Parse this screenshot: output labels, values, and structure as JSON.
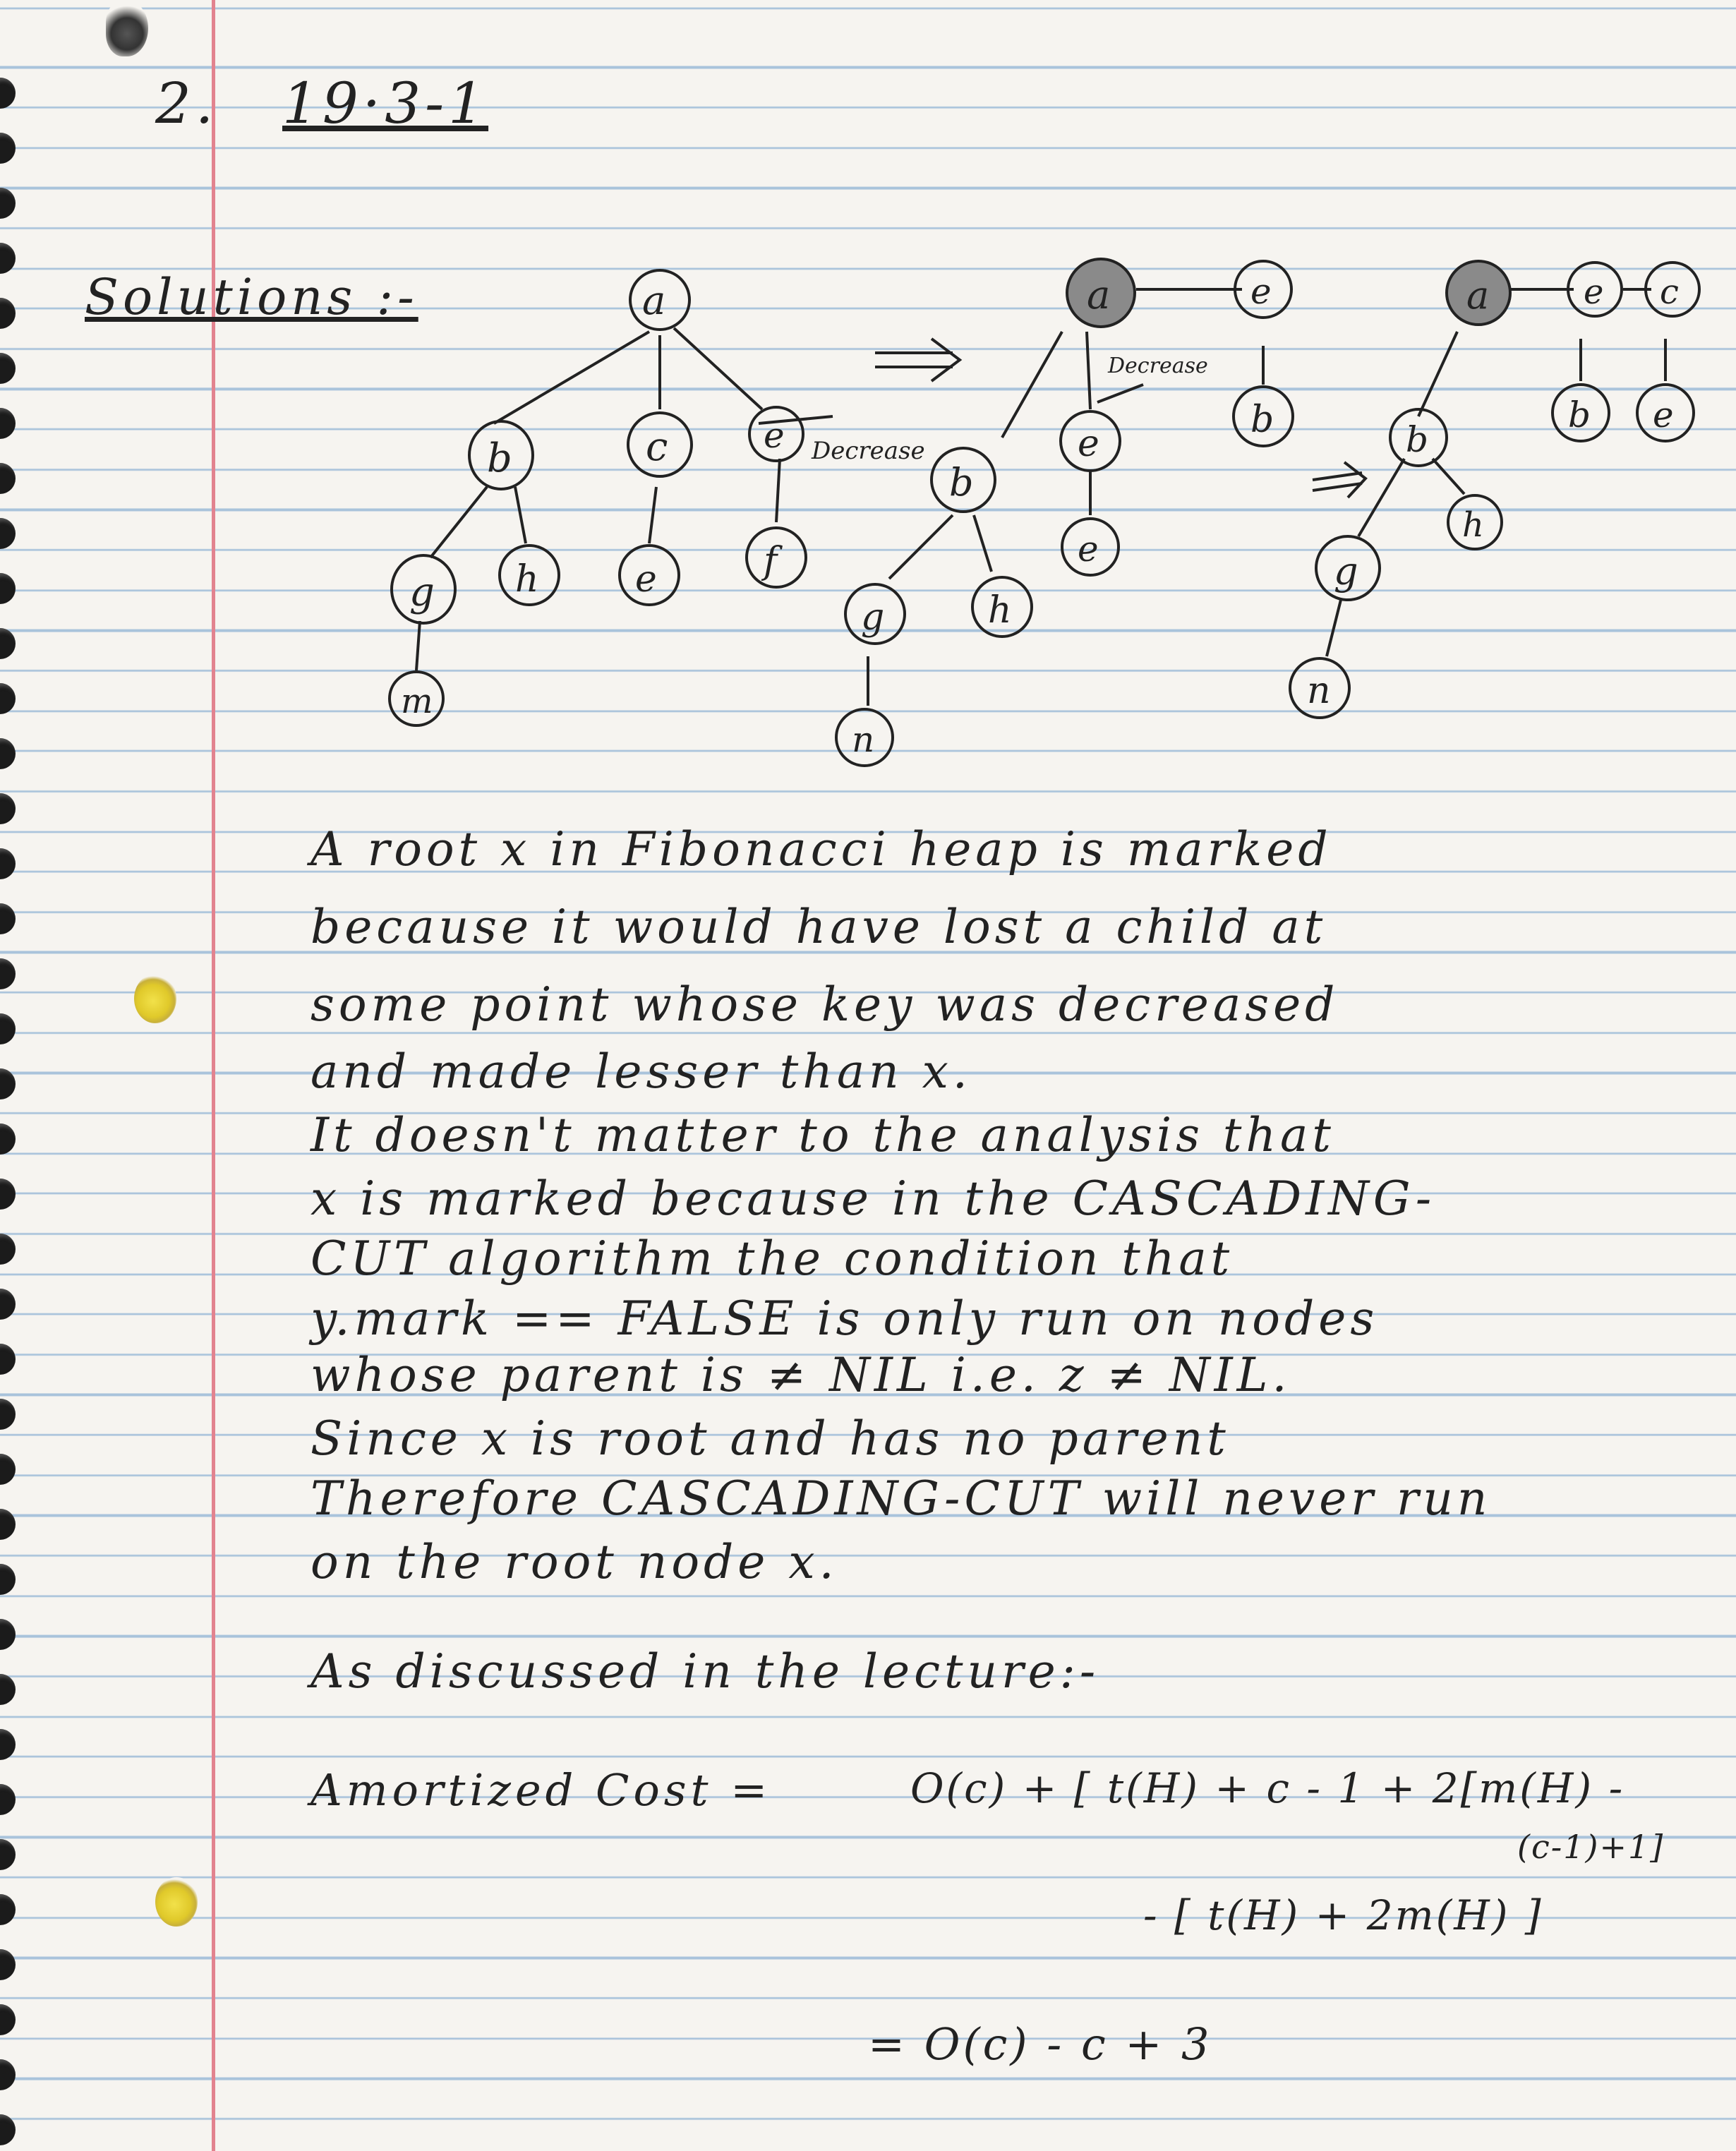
{
  "header": {
    "problem_number": "2.",
    "problem_id": "19·3-1",
    "solution_label": "Solutions :-"
  },
  "diagram": {
    "tree1": {
      "root": "a",
      "children": [
        "b",
        "c",
        "e"
      ],
      "b_children": [
        "g",
        "h"
      ],
      "c_children": [
        "e"
      ],
      "e_children": [
        "f"
      ],
      "g_children": [
        "m"
      ]
    },
    "tree2": {
      "root": "a",
      "second_root": "e",
      "children": [
        "b",
        "e"
      ],
      "b_children": [
        "g",
        "h"
      ],
      "g_children": [
        "n"
      ],
      "e_children": [
        "e"
      ],
      "f_label": "b"
    },
    "tree3": {
      "roots": [
        "a",
        "e",
        "c"
      ],
      "a_children": [
        "b"
      ],
      "b_children": [
        "g",
        "h"
      ],
      "g_children": [
        "n"
      ],
      "e_children": [
        "b"
      ],
      "c_children": [
        "e"
      ]
    },
    "arrow1_label": "Decrease",
    "arrow2_label": "Decrease",
    "implies": "⟹"
  },
  "body_lines": [
    "A root x in Fibonacci heap is marked",
    "because it would have lost a child at",
    "some point whose key was decreased",
    "and made lesser than x.",
    "It doesn't matter to the analysis that",
    "x is marked because in the CASCADING-",
    "CUT algorithm the condition that",
    "y.mark == FALSE is only run on nodes",
    "whose parent is ≠ NIL i.e. z ≠ NIL.",
    "Since x is root and has no parent",
    "Therefore CASCADING-CUT will never run",
    "on the root node x."
  ],
  "lecture": {
    "intro": "As discussed in the lecture:-",
    "amortized_label": "Amortized Cost =",
    "line1": "O(c) + [ t(H) + c - 1 + 2[m(H) -",
    "line1b": "(c-1)+1]",
    "line2": "- [ t(H) + 2m(H) ]",
    "line3": "= O(c) - c + 3"
  }
}
